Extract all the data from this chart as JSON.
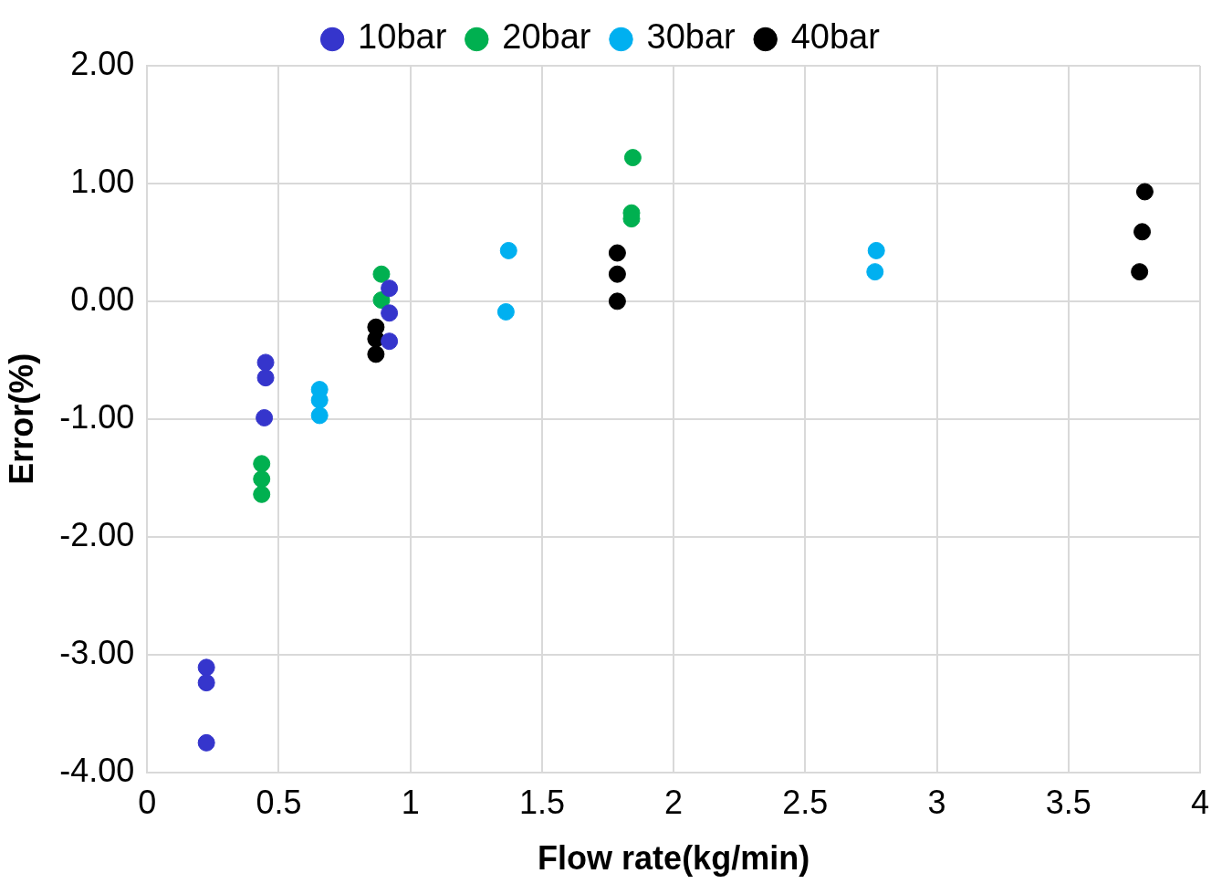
{
  "chart_data": {
    "type": "scatter",
    "xlabel": "Flow rate(kg/min)",
    "ylabel": "Error(%)",
    "xlim": [
      0,
      4
    ],
    "xticks": [
      0,
      0.5,
      1,
      1.5,
      2,
      2.5,
      3,
      3.5,
      4
    ],
    "ylim": [
      -4,
      2
    ],
    "yticks": [
      {
        "value": -4,
        "label": "-4.00"
      },
      {
        "value": -3,
        "label": "-3.00"
      },
      {
        "value": -2,
        "label": "-2.00"
      },
      {
        "value": -1,
        "label": "-1.00"
      },
      {
        "value": 0,
        "label": "0.00"
      },
      {
        "value": 1,
        "label": "1.00"
      },
      {
        "value": 2,
        "label": "2.00"
      }
    ],
    "grid": true,
    "legend": "top",
    "marker": "circle",
    "series": [
      {
        "name": "10bar",
        "color": "#3535cc",
        "x": [
          0.225,
          0.225,
          0.225,
          0.45,
          0.45,
          0.445,
          0.92,
          0.92,
          0.92
        ],
        "values": [
          -3.11,
          -3.24,
          -3.75,
          -0.52,
          -0.65,
          -0.99,
          0.11,
          -0.1,
          -0.34
        ]
      },
      {
        "name": "20bar",
        "color": "#00b050",
        "x": [
          0.435,
          0.435,
          0.435,
          0.89,
          0.89,
          1.845,
          1.84,
          1.84
        ],
        "values": [
          -1.38,
          -1.51,
          -1.64,
          0.23,
          0.01,
          1.22,
          0.75,
          0.7
        ]
      },
      {
        "name": "30bar",
        "color": "#00b0f0",
        "x": [
          0.655,
          0.655,
          0.655,
          1.373,
          1.363,
          2.77,
          2.765
        ],
        "values": [
          -0.75,
          -0.84,
          -0.97,
          0.43,
          -0.09,
          0.43,
          0.25
        ]
      },
      {
        "name": "40bar",
        "color": "#000000",
        "x": [
          0.869,
          0.869,
          0.869,
          1.786,
          1.786,
          1.786,
          3.79,
          3.78,
          3.77
        ],
        "values": [
          -0.22,
          -0.32,
          -0.45,
          0.41,
          0.23,
          0,
          0.93,
          0.59,
          0.25
        ]
      }
    ]
  }
}
